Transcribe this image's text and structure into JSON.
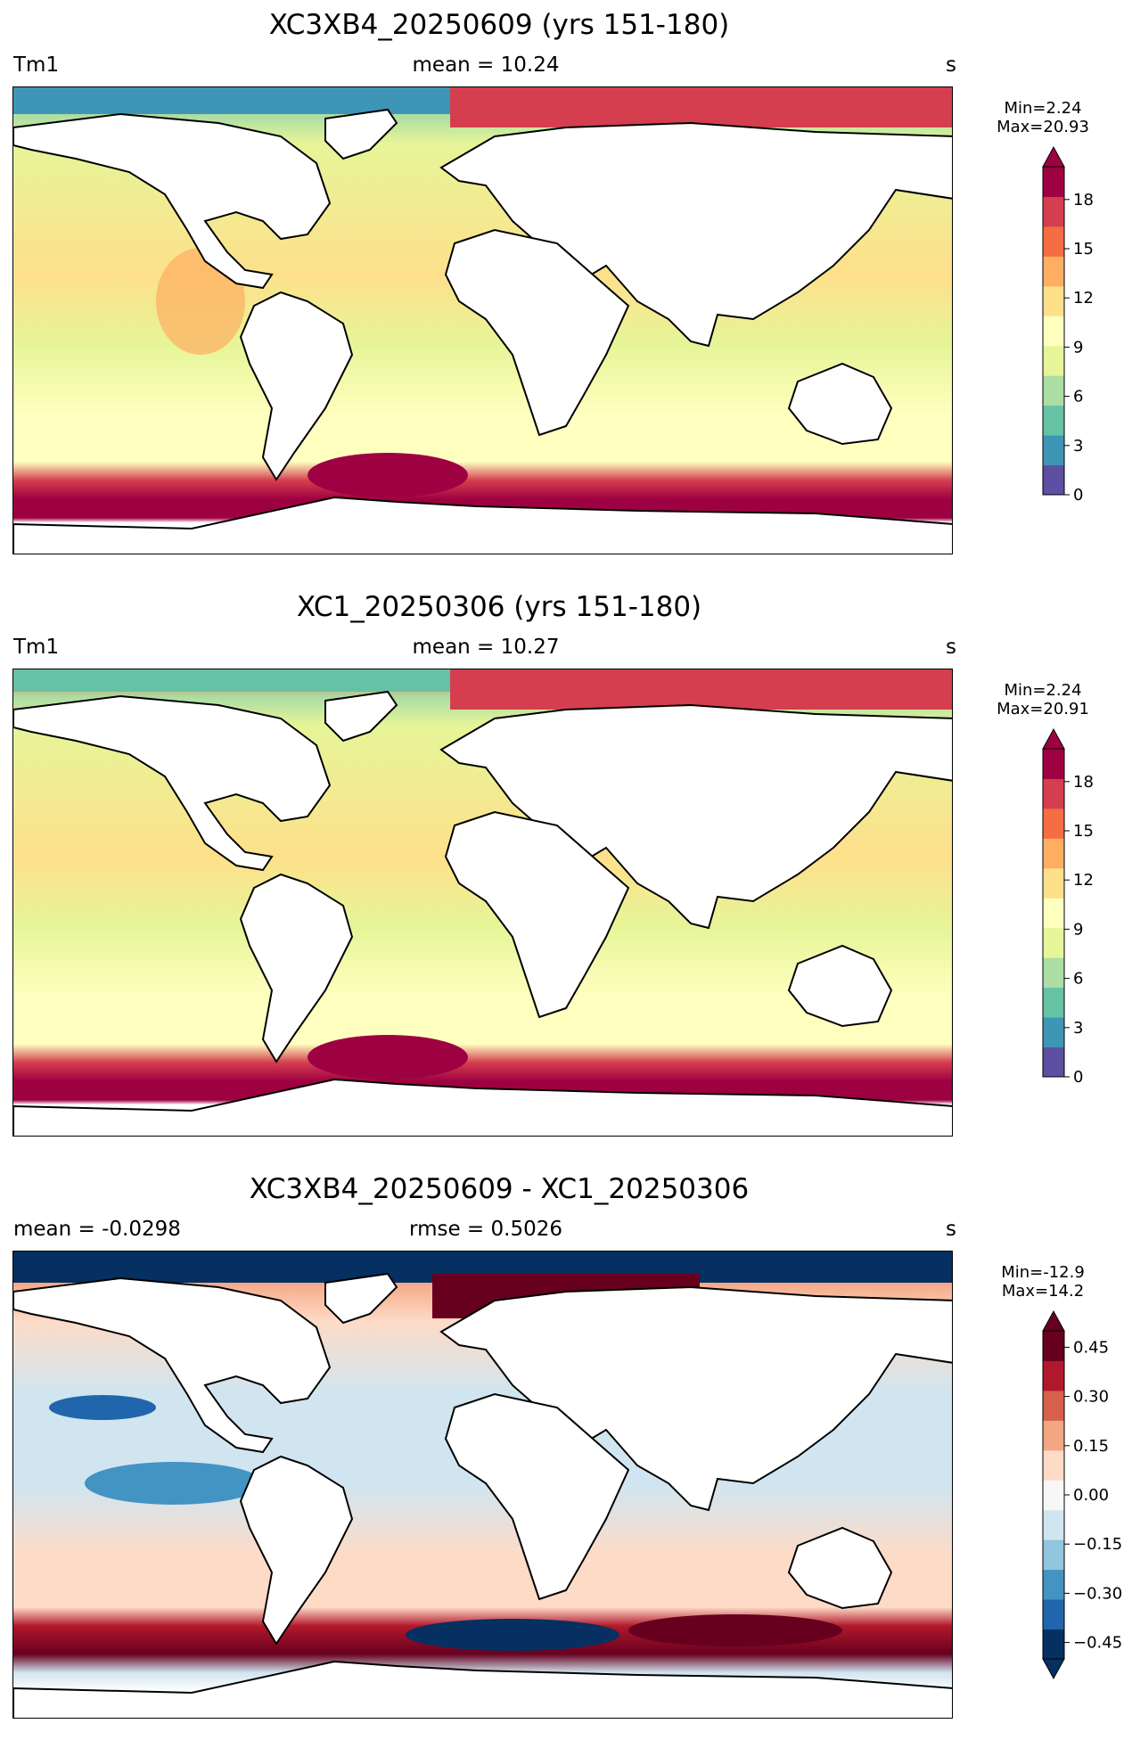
{
  "panels": [
    {
      "title": "XC3XB4_20250609 (yrs 151-180)",
      "left_label": "Tm1",
      "center_label": "mean = 10.24",
      "units": "s",
      "min_label": "Min=2.24",
      "max_label": "Max=20.93",
      "colorbar": {
        "ticks": [
          "0",
          "3",
          "6",
          "9",
          "12",
          "15",
          "18"
        ],
        "range": [
          0,
          20
        ],
        "extend": "max",
        "colors": [
          "#5e4fa2",
          "#3e96b7",
          "#66c2a5",
          "#abdda4",
          "#e6f598",
          "#ffffbf",
          "#fee08b",
          "#fdae61",
          "#f46d43",
          "#d53e4f",
          "#9e0142"
        ]
      }
    },
    {
      "title": "XC1_20250306 (yrs 151-180)",
      "left_label": "Tm1",
      "center_label": "mean = 10.27",
      "units": "s",
      "min_label": "Min=2.24",
      "max_label": "Max=20.91",
      "colorbar": {
        "ticks": [
          "0",
          "3",
          "6",
          "9",
          "12",
          "15",
          "18"
        ],
        "range": [
          0,
          20
        ],
        "extend": "max",
        "colors": [
          "#5e4fa2",
          "#3e96b7",
          "#66c2a5",
          "#abdda4",
          "#e6f598",
          "#ffffbf",
          "#fee08b",
          "#fdae61",
          "#f46d43",
          "#d53e4f",
          "#9e0142"
        ]
      }
    },
    {
      "title": "XC3XB4_20250609 - XC1_20250306",
      "left_label": "mean = -0.0298",
      "center_label": "rmse = 0.5026",
      "units": "s",
      "min_label": "Min=-12.9",
      "max_label": "Max=14.2",
      "colorbar": {
        "ticks": [
          "−0.45",
          "−0.30",
          "−0.15",
          "0.00",
          "0.15",
          "0.30",
          "0.45"
        ],
        "range": [
          -0.5,
          0.5
        ],
        "extend": "both",
        "colors": [
          "#053061",
          "#2166ac",
          "#4393c3",
          "#92c5de",
          "#d1e5f0",
          "#f7f7f7",
          "#fddbc7",
          "#f4a582",
          "#d6604d",
          "#b2182b",
          "#67001f"
        ]
      }
    }
  ]
}
